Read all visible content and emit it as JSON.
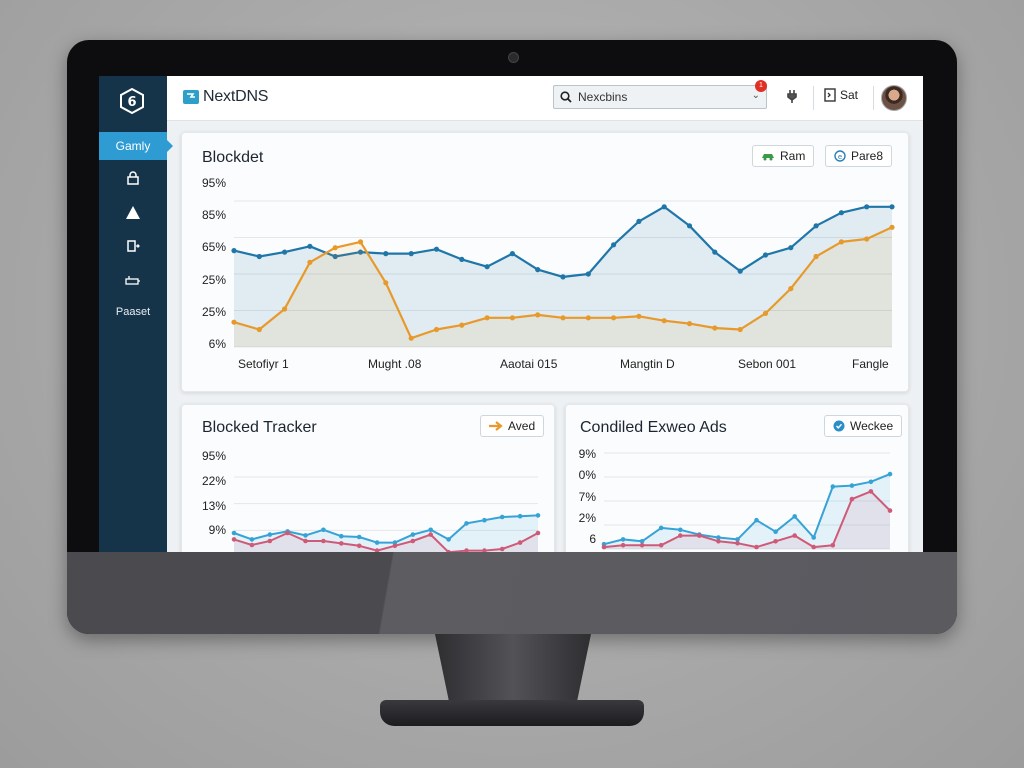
{
  "app": {
    "name": "NextDNS",
    "sidebar_logo": "6"
  },
  "sidebar": {
    "active_label": "Gamly",
    "icons": [
      "lock-icon",
      "warning-icon",
      "device-icon",
      "router-icon"
    ],
    "bottom_label": "Paaset"
  },
  "topbar": {
    "search_value": "Nexcbins",
    "notification_count": "1",
    "account_label": "Sat"
  },
  "colors": {
    "blue": "#1f76a8",
    "orange": "#e79a2b",
    "light_blue": "#36a3d6",
    "pink": "#cf5a78",
    "accent": "#2f9bd3"
  },
  "cards": {
    "main": {
      "title": "Blockdet",
      "buttons": [
        {
          "label": "Ram",
          "icon": "car-icon"
        },
        {
          "label": "Pare8",
          "icon": "e-circle-icon"
        }
      ],
      "yticks": [
        "95%",
        "85%",
        "65%",
        "25%",
        "25%",
        "6%"
      ],
      "xticks": [
        "Setofiyr 1",
        "Mught .08",
        "Aaotai 015",
        "Mangtin D",
        "Sebon 001",
        "Fangle"
      ]
    },
    "left": {
      "title": "Blocked Tracker",
      "button": {
        "label": "Aved",
        "icon": "arrow-right-icon"
      },
      "yticks": [
        "95%",
        "22%",
        "13%",
        "9%"
      ]
    },
    "right": {
      "title": "Condiled Exweo Ads",
      "button": {
        "label": "Weckee",
        "icon": "check-circle-icon"
      },
      "yticks": [
        "9%",
        "0%",
        "7%",
        "2%",
        "6"
      ]
    }
  },
  "chart_data": [
    {
      "type": "line",
      "ylim": [
        0,
        100
      ],
      "series": [
        {
          "color": "#1f76a8",
          "values": [
            66,
            62,
            65,
            69,
            62,
            65,
            64,
            64,
            67,
            60,
            55,
            64,
            53,
            48,
            50,
            70,
            86,
            96,
            83,
            65,
            52,
            63,
            68,
            83,
            92,
            96,
            96
          ]
        },
        {
          "color": "#e79a2b",
          "values": [
            17,
            12,
            26,
            58,
            68,
            72,
            44,
            6,
            12,
            15,
            20,
            20,
            22,
            20,
            20,
            20,
            21,
            18,
            16,
            13,
            12,
            23,
            40,
            62,
            72,
            74,
            82
          ]
        }
      ]
    },
    {
      "type": "line",
      "ylim": [
        0,
        100
      ],
      "series": [
        {
          "color": "#36a3d6",
          "values": [
            30,
            22,
            28,
            32,
            27,
            34,
            26,
            25,
            18,
            18,
            28,
            34,
            22,
            42,
            46,
            50,
            51,
            52
          ]
        },
        {
          "color": "#cf5a78",
          "values": [
            22,
            15,
            20,
            30,
            20,
            20,
            17,
            14,
            8,
            14,
            20,
            28,
            6,
            8,
            8,
            10,
            18,
            30
          ]
        }
      ]
    },
    {
      "type": "line",
      "ylim": [
        0,
        100
      ],
      "series": [
        {
          "color": "#36a3d6",
          "values": [
            5,
            10,
            8,
            22,
            20,
            15,
            12,
            10,
            30,
            18,
            34,
            12,
            65,
            66,
            70,
            78
          ]
        },
        {
          "color": "#cf5a78",
          "values": [
            2,
            4,
            4,
            4,
            14,
            14,
            8,
            6,
            2,
            8,
            14,
            2,
            4,
            52,
            60,
            40
          ]
        }
      ]
    }
  ]
}
